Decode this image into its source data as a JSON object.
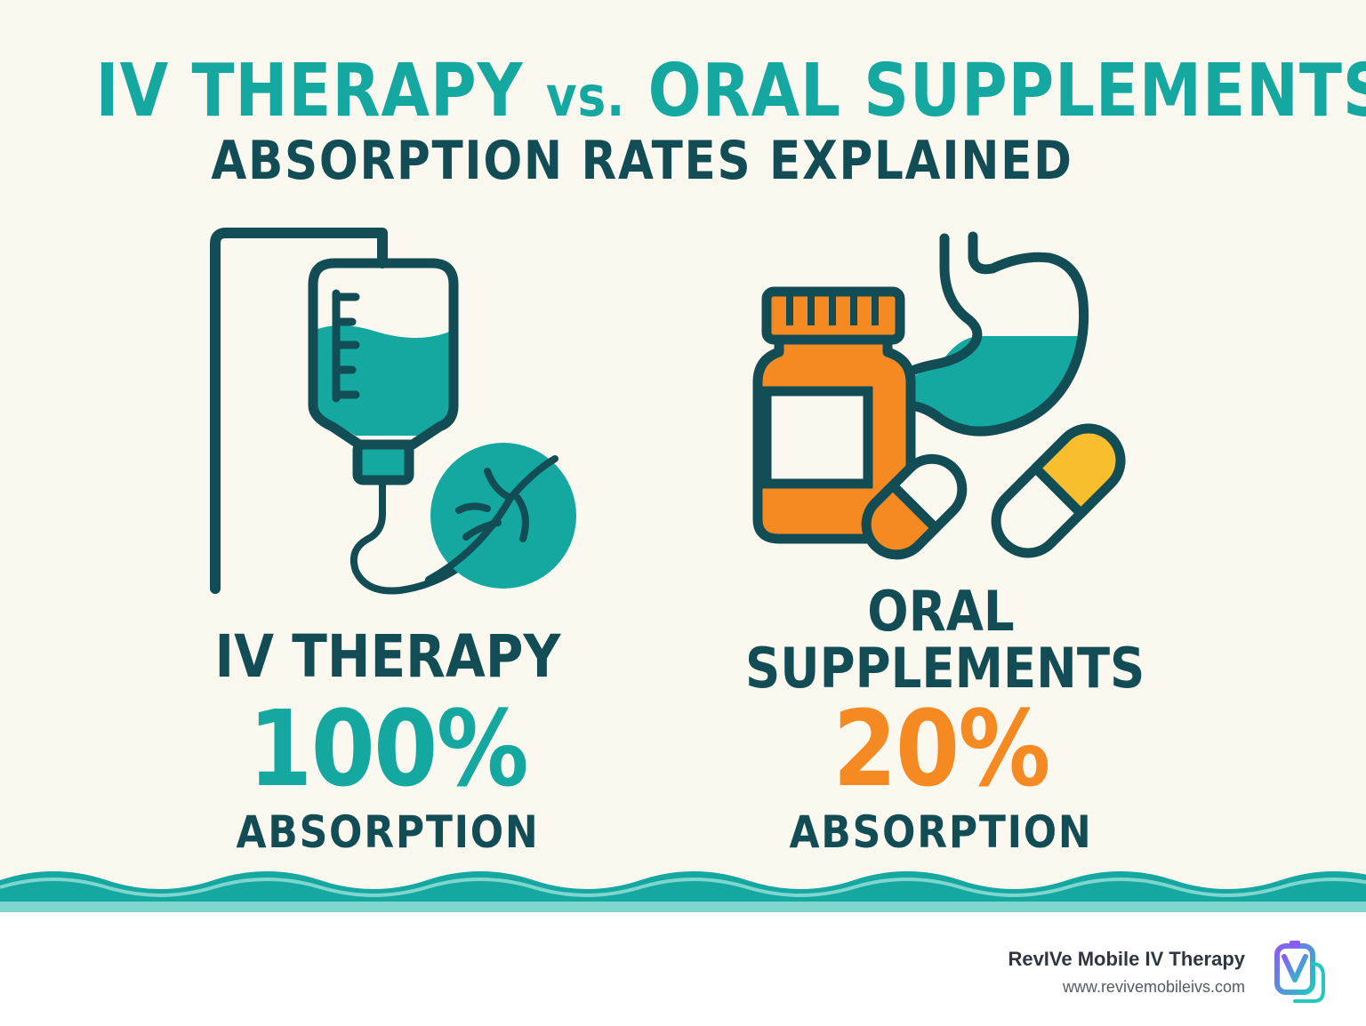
{
  "title": {
    "part1": "IV THERAPY",
    "vs": "vs.",
    "part2": "ORAL SUPPLEMENTS:",
    "subtitle": "ABSORPTION RATES EXPLAINED"
  },
  "iv": {
    "label": "IV THERAPY",
    "percent": "100%",
    "caption": "ABSORPTION",
    "icon": "iv-bag-icon",
    "vein_icon": "vein-icon"
  },
  "oral": {
    "label_line1": "ORAL",
    "label_line2": "SUPPLEMENTS",
    "percent": "20%",
    "caption": "ABSORPTION",
    "icon": "pill-bottle-icon",
    "stomach_icon": "stomach-icon",
    "capsule_icon": "capsule-icon"
  },
  "footer": {
    "brand": "RevIVe Mobile IV Therapy",
    "url": "www.revivemobileivs.com",
    "logo_icon": "revive-logo-icon"
  },
  "colors": {
    "background": "#fbf8ef",
    "teal": "#14a8a0",
    "dark_teal": "#124d55",
    "orange": "#f58a22",
    "yellow": "#f9be2e"
  }
}
